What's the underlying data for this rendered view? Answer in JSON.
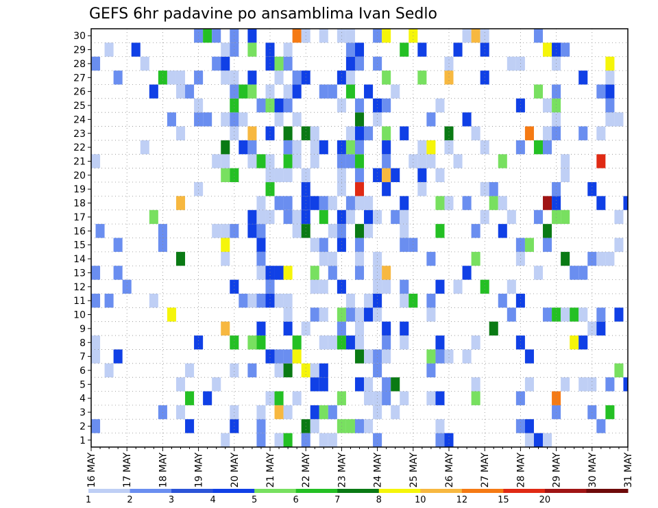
{
  "chart_data": {
    "type": "heatmap",
    "title": "GEFS 6hr padavine po ansamblima Ivan Sedlo",
    "xlabel": "",
    "ylabel": "",
    "x_tick_labels": [
      "16 MAY",
      "17 MAY",
      "18 MAY",
      "19 MAY",
      "20 MAY",
      "21 MAY",
      "22 MAY",
      "23 MAY",
      "24 MAY",
      "25 MAY",
      "26 MAY",
      "27 MAY",
      "28 MAY",
      "29 MAY",
      "30 MAY",
      "31 MAY"
    ],
    "y_tick_labels": [
      "1",
      "2",
      "3",
      "4",
      "5",
      "6",
      "7",
      "8",
      "9",
      "10",
      "11",
      "12",
      "13",
      "14",
      "15",
      "16",
      "17",
      "18",
      "19",
      "20",
      "21",
      "22",
      "23",
      "24",
      "25",
      "26",
      "27",
      "28",
      "29",
      "30"
    ],
    "grid": "dotted",
    "colorbar": {
      "labels": [
        "1",
        "2",
        "3",
        "4",
        "5",
        "6",
        "7",
        "8",
        "10",
        "12",
        "15",
        "20"
      ],
      "colors": [
        "#bfcff5",
        "#6a8ef0",
        "#2c54d8",
        "#1040e6",
        "#78e060",
        "#24c024",
        "#0a7a14",
        "#f5f50a",
        "#f7b840",
        "#f57a14",
        "#e02a14",
        "#a01414",
        "#6e0a0a"
      ]
    },
    "ensemble_levels_per_member": {
      "1": [
        0,
        0,
        0,
        0,
        0,
        1,
        0,
        0,
        0,
        0,
        0,
        0,
        0,
        0,
        0,
        0,
        0,
        0,
        0,
        0,
        0,
        0,
        0,
        0,
        5,
        1,
        0,
        0,
        1,
        0,
        0,
        0,
        0,
        0,
        0,
        0,
        3,
        0,
        3,
        1,
        1,
        1,
        1,
        6,
        1,
        1,
        4,
        0,
        5,
        6,
        1,
        0,
        0,
        0,
        0,
        0,
        0,
        0,
        1,
        0,
        0,
        0,
        0,
        0,
        0,
        0,
        0,
        0,
        0,
        0,
        0,
        0,
        0,
        0,
        0,
        0,
        0,
        0,
        0,
        0,
        0,
        0,
        0,
        0,
        0,
        0,
        0,
        0,
        0,
        0,
        0,
        0,
        0,
        0,
        0,
        0,
        0,
        0,
        0,
        0,
        0,
        0,
        0,
        0,
        0,
        0,
        0,
        0,
        0,
        0,
        0,
        0,
        0,
        0,
        0,
        0,
        0,
        0,
        0,
        0,
        0,
        0,
        0,
        0,
        0,
        0,
        0,
        0,
        0,
        0,
        0,
        0,
        0,
        0,
        0,
        0,
        0,
        0,
        0,
        0,
        0,
        0,
        0,
        0,
        0,
        0,
        0,
        0,
        0,
        0,
        0,
        0,
        0,
        0,
        0,
        0,
        0,
        0,
        0,
        0,
        0,
        0,
        0,
        0,
        0,
        0,
        0,
        0,
        0,
        0,
        0,
        0,
        0,
        0,
        0,
        0,
        0,
        0,
        0,
        0,
        0,
        0,
        0,
        0,
        0,
        0,
        0,
        0,
        0,
        0,
        0,
        0,
        0,
        0,
        0,
        0,
        0,
        0,
        0,
        0,
        0,
        0,
        0,
        0,
        0,
        0,
        0,
        0,
        0,
        0,
        0,
        0,
        0,
        0,
        0,
        0,
        0,
        0,
        0,
        0,
        0,
        0,
        0,
        0,
        0,
        0,
        0,
        0,
        0,
        0,
        0,
        0,
        0,
        0,
        0,
        0,
        0,
        0,
        0,
        0,
        0,
        0,
        0,
        0,
        0
      ]
    },
    "sample_cells_note": "Precipitation category per ensemble member (1-30) and 6-hour step, 16 MAY to 31 MAY",
    "cells": []
  }
}
